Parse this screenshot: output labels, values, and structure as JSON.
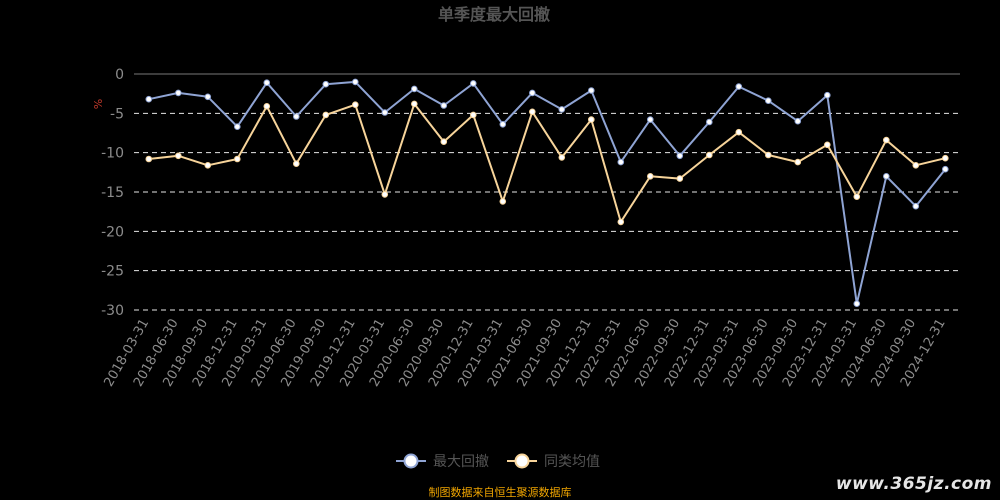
{
  "chart_data": {
    "type": "line",
    "title": "单季度最大回撤",
    "ylabel": "%",
    "ylim": [
      -30,
      0
    ],
    "yticks": [
      0,
      -5,
      -10,
      -15,
      -20,
      -25,
      -30
    ],
    "grid": true,
    "legend_position": "bottom-center",
    "categories": [
      "2018-03-31",
      "2018-06-30",
      "2018-09-30",
      "2018-12-31",
      "2019-03-31",
      "2019-06-30",
      "2019-09-30",
      "2019-12-31",
      "2020-03-31",
      "2020-06-30",
      "2020-09-30",
      "2020-12-31",
      "2021-03-31",
      "2021-06-30",
      "2021-09-30",
      "2021-12-31",
      "2022-03-31",
      "2022-06-30",
      "2022-09-30",
      "2022-12-31",
      "2023-03-31",
      "2023-06-30",
      "2023-09-30",
      "2023-12-31",
      "2024-03-31",
      "2024-06-30",
      "2024-09-30",
      "2024-12-31"
    ],
    "series": [
      {
        "name": "最大回撤",
        "color": "#8fa4d4",
        "values": [
          -3.2,
          -2.4,
          -2.9,
          -6.7,
          -1.1,
          -5.4,
          -1.3,
          -1.0,
          -4.9,
          -1.9,
          -4.0,
          -1.2,
          -6.4,
          -2.4,
          -4.5,
          -2.1,
          -11.2,
          -5.8,
          -10.4,
          -6.1,
          -1.6,
          -3.4,
          -6.0,
          -2.7,
          -29.2,
          -13.0,
          -16.8,
          -12.1
        ]
      },
      {
        "name": "同类均值",
        "color": "#f7d49a",
        "values": [
          -10.8,
          -10.4,
          -11.6,
          -10.8,
          -4.1,
          -11.4,
          -5.2,
          -3.9,
          -15.3,
          -3.8,
          -8.6,
          -5.2,
          -16.2,
          -4.8,
          -10.6,
          -5.8,
          -18.8,
          -13.0,
          -13.3,
          -10.3,
          -7.4,
          -10.3,
          -11.2,
          -9.0,
          -15.6,
          -8.4,
          -11.6,
          -10.7
        ]
      }
    ],
    "source_note": "制图数据来自恒生聚源数据库"
  },
  "watermark": "www.365jz.com",
  "colors": {
    "background": "#000000",
    "axis": "#777777",
    "grid": "#e6e6e6",
    "tick_label": "#8c8c8c",
    "title": "#555555",
    "unit": "#c0392b",
    "source": "#f0a500"
  }
}
